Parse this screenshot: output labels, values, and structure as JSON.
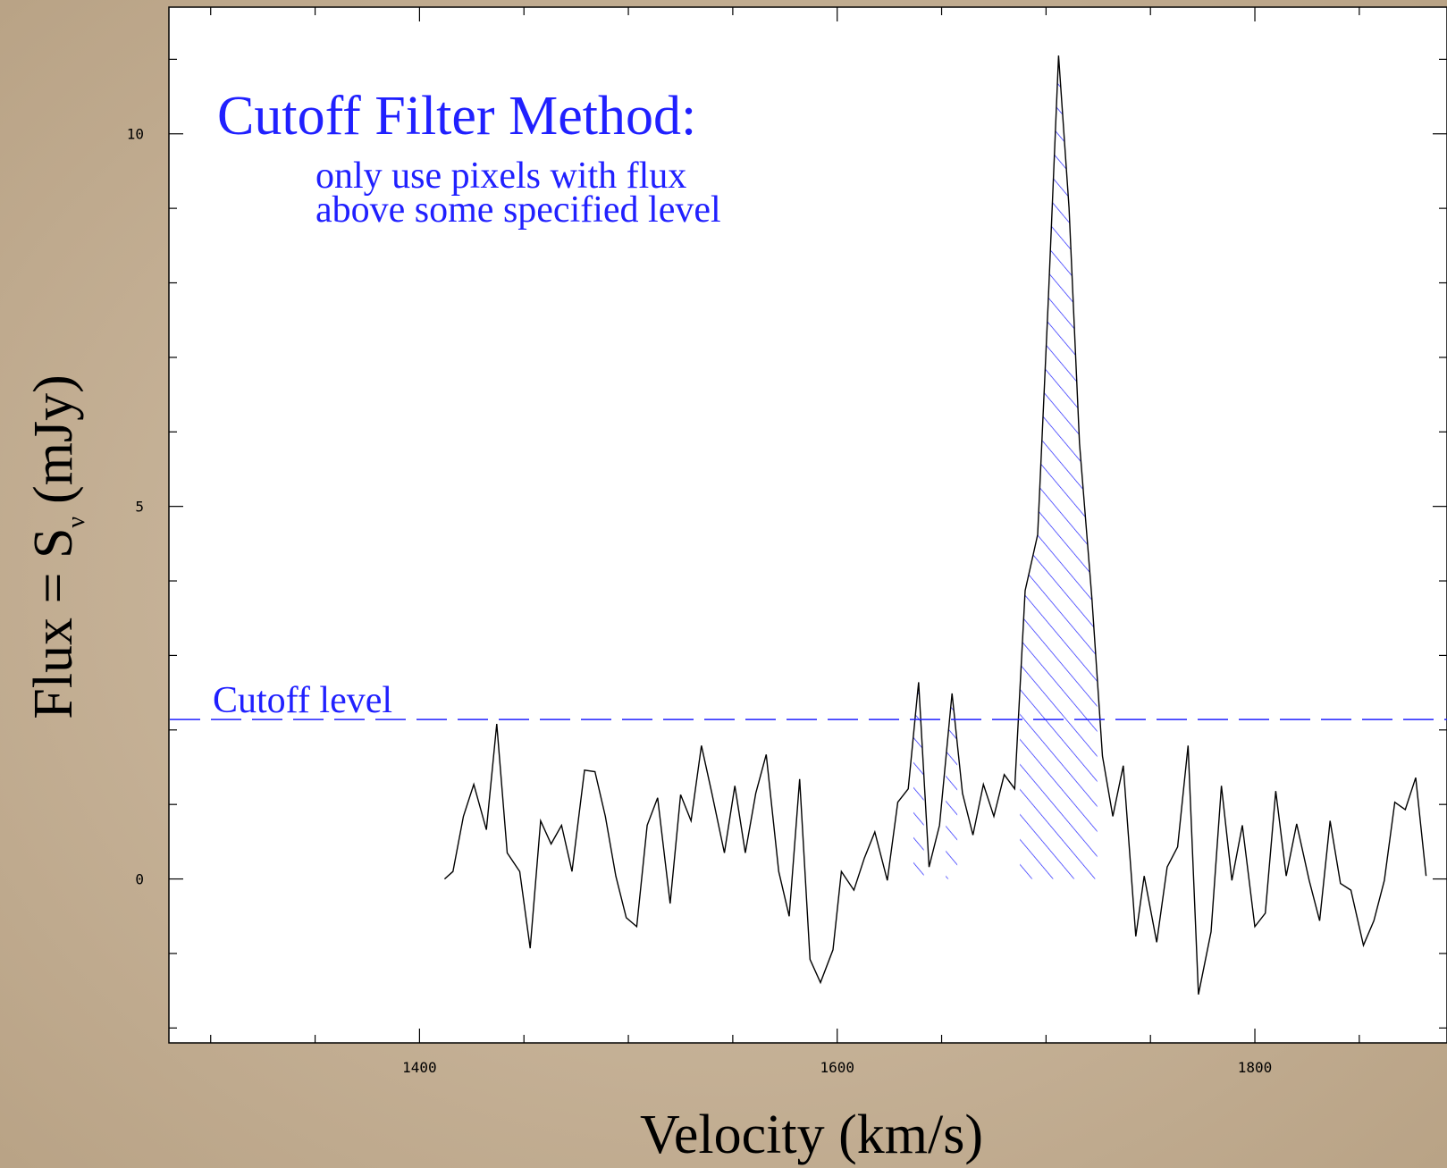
{
  "chart_data": {
    "type": "line",
    "title": "Cutoff Filter Method:",
    "subtitle": [
      "only use pixels with flux",
      "above some specified level"
    ],
    "annotation": "Cutoff level",
    "cutoff": 2.14,
    "cutoff_color": "#2020ff",
    "xlabel": "Velocity (km/s)",
    "ylabel_parts": [
      "Flux = S",
      "ν",
      "(mJy)"
    ],
    "x": [
      1412,
      1416,
      1421,
      1426,
      1432,
      1437,
      1442,
      1448,
      1453,
      1458,
      1463,
      1468,
      1473,
      1479,
      1484,
      1489,
      1494,
      1499,
      1504,
      1509,
      1514,
      1520,
      1525,
      1530,
      1535,
      1540,
      1546,
      1551,
      1556,
      1561,
      1566,
      1572,
      1577,
      1582,
      1587,
      1592,
      1598,
      1602,
      1608,
      1613,
      1618,
      1624,
      1629,
      1634,
      1639,
      1644,
      1649,
      1655,
      1660,
      1665,
      1670,
      1675,
      1680,
      1685,
      1690,
      1696,
      1701,
      1706,
      1711,
      1716,
      1722,
      1727,
      1732,
      1737,
      1743,
      1747,
      1753,
      1758,
      1763,
      1768,
      1773,
      1779,
      1784,
      1789,
      1794,
      1800,
      1805,
      1810,
      1815,
      1820,
      1826,
      1831,
      1836,
      1841,
      1846,
      1852,
      1857,
      1862,
      1867,
      1872,
      1877,
      1882
    ],
    "series": [
      {
        "color": "#000000",
        "values": [
          0,
          0.1,
          0.84,
          1.27,
          0.66,
          2.08,
          0.35,
          0.1,
          -0.93,
          0.78,
          0.47,
          0.72,
          0.1,
          1.46,
          1.44,
          0.84,
          0.04,
          -0.52,
          -0.64,
          0.72,
          1.09,
          -0.33,
          1.13,
          0.78,
          1.79,
          1.15,
          0.35,
          1.25,
          0.35,
          1.15,
          1.67,
          0.1,
          -0.5,
          1.34,
          -1.08,
          -1.39,
          -0.95,
          0.1,
          -0.15,
          0.28,
          0.63,
          -0.02,
          1.03,
          1.21,
          2.64,
          0.16,
          0.72,
          2.49,
          1.15,
          0.59,
          1.27,
          0.84,
          1.4,
          1.21,
          3.87,
          4.62,
          7.71,
          11.05,
          9.01,
          5.85,
          3.75,
          1.65,
          0.84,
          1.52,
          -0.77,
          0.04,
          -0.85,
          0.16,
          0.43,
          1.79,
          -1.55,
          -0.71,
          1.25,
          -0.02,
          0.72,
          -0.64,
          -0.46,
          1.18,
          0.04,
          0.74,
          -0.02,
          -0.56,
          0.78,
          -0.06,
          -0.15,
          -0.89,
          -0.56,
          -0.02,
          1.03,
          0.93,
          1.36,
          0.04
        ]
      }
    ],
    "xlim": [
      1280,
      1892
    ],
    "ylim": [
      -2.2,
      11.7
    ],
    "xticks": [
      1400,
      1600,
      1800
    ],
    "xminorticks": [
      1300,
      1350,
      1450,
      1500,
      1550,
      1650,
      1700,
      1750,
      1850
    ],
    "yticks": [
      0,
      5,
      10
    ],
    "yminorticks": [
      -2,
      -1,
      1,
      2,
      3,
      4,
      6,
      7,
      8,
      9,
      11
    ]
  }
}
